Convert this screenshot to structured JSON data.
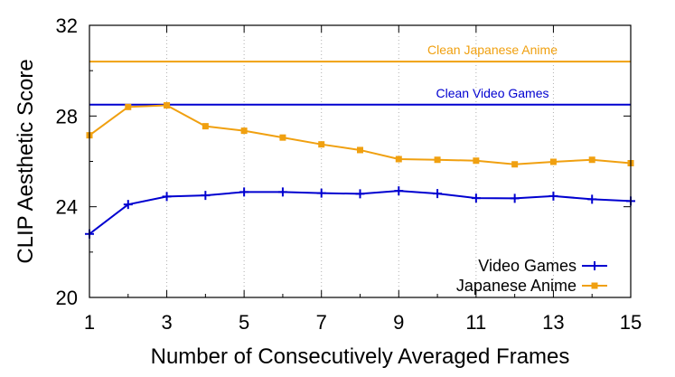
{
  "chart_data": {
    "type": "line",
    "xlabel": "Number of Consecutively Averaged Frames",
    "ylabel": "CLIP Aesthetic Score",
    "xlim": [
      1,
      15
    ],
    "ylim": [
      20,
      32
    ],
    "xticks": [
      1,
      3,
      5,
      7,
      9,
      11,
      13,
      15
    ],
    "yticks": [
      20,
      24,
      28,
      32
    ],
    "grid": "vertical-dotted",
    "legend_position": "bottom-right",
    "x": [
      1,
      2,
      3,
      4,
      5,
      6,
      7,
      8,
      9,
      10,
      11,
      12,
      13,
      14,
      15
    ],
    "series": [
      {
        "name": "Video Games",
        "color": "#0000d0",
        "marker": "plus",
        "values": [
          22.8,
          24.1,
          24.45,
          24.5,
          24.65,
          24.65,
          24.6,
          24.57,
          24.7,
          24.58,
          24.38,
          24.37,
          24.47,
          24.33,
          24.25
        ]
      },
      {
        "name": "Japanese Anime",
        "color": "#f0a010",
        "marker": "square",
        "values": [
          27.15,
          28.4,
          28.47,
          27.55,
          27.35,
          27.05,
          26.75,
          26.5,
          26.1,
          26.07,
          26.03,
          25.87,
          25.98,
          26.07,
          25.92
        ]
      }
    ],
    "reference_lines": [
      {
        "label": "Clean Japanese Anime",
        "value": 30.4,
        "color": "#f0a010"
      },
      {
        "label": "Clean Video Games",
        "value": 28.5,
        "color": "#0000d0"
      }
    ]
  }
}
